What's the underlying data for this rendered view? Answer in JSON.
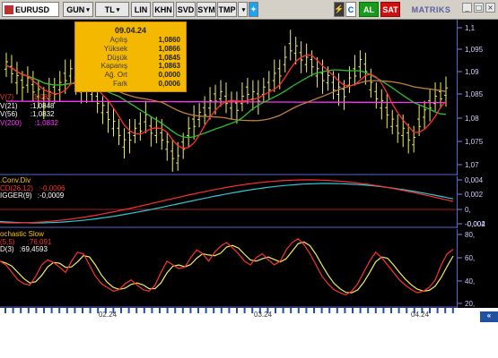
{
  "toolbar": {
    "symbol": "EURUSD",
    "buttons": [
      "GUN",
      "TL",
      "LIN",
      "KHN",
      "SVD",
      "SYM",
      "TMP"
    ],
    "c_label": "C",
    "al_label": "AL",
    "sat_label": "SAT",
    "brand": "MATRIKS"
  },
  "info_box": {
    "date": "09.04.24",
    "rows": [
      {
        "k": "Açılış",
        "v": "1,0860"
      },
      {
        "k": "Yüksek",
        "v": "1,0866"
      },
      {
        "k": "Düşük",
        "v": "1,0845"
      },
      {
        "k": "Kapanış",
        "v": "1,0863"
      },
      {
        "k": "Ağ. Ort",
        "v": "0,0000"
      },
      {
        "k": "Fark",
        "v": "0,0006"
      }
    ]
  },
  "price_panel": {
    "axis_ticks": [
      "1,1",
      "1,095",
      "1,09",
      "1,085",
      "1,08",
      "1,075",
      "1,07"
    ],
    "legend": [
      {
        "name": "V(7)",
        "value": ":1,082",
        "color": "#ff3030"
      },
      {
        "name": "V(21)",
        "value": ":1,0848",
        "color": "#ffffff"
      },
      {
        "name": "V(56)",
        "value": ":1,0832",
        "color": "#ffffff"
      },
      {
        "name": "V(200)",
        "value": ":1,0832",
        "color": "#ff30ff"
      }
    ]
  },
  "macd_panel": {
    "title": ".Conv.Div",
    "legend": [
      {
        "name": "CD(26,12)",
        "value": ":-0,0006",
        "color": "#ff3030"
      },
      {
        "name": "IGGER(9)",
        "value": ":-0,0009",
        "color": "#ffffff"
      }
    ],
    "axis_ticks": [
      "0,004",
      "0,002",
      "0,",
      "-0,002",
      "-0,004"
    ]
  },
  "stoch_panel": {
    "title": "ochastic Slow",
    "legend": [
      {
        "name": "(5,5)",
        "value": ":76,091",
        "color": "#ff3030"
      },
      {
        "name": "D(3)",
        "value": ":69,4593",
        "color": "#ffffff"
      }
    ],
    "axis_ticks": [
      "80,",
      "60,",
      "40,",
      "20,"
    ]
  },
  "date_axis": {
    "labels": [
      "02.24",
      "03.24",
      "04.24"
    ]
  },
  "chart_data": {
    "type": "candlestick",
    "series": [
      {
        "name": "V(7)",
        "color": "#ff3030"
      },
      {
        "name": "V(21)",
        "color": "#2fbf2f"
      },
      {
        "name": "V(56)",
        "color": "#c08040"
      },
      {
        "name": "V(200)",
        "color": "#ff30ff"
      }
    ],
    "ylim": [
      1.068,
      1.102
    ]
  }
}
